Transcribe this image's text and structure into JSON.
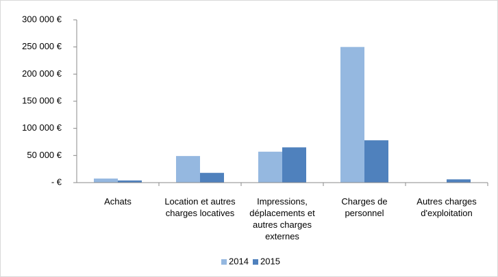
{
  "chart_data": {
    "type": "bar",
    "categories": [
      "Achats",
      "Location et autres charges locatives",
      "Impressions, déplacements et autres charges externes",
      "Charges de personnel",
      "Autres charges d'exploitation"
    ],
    "series": [
      {
        "name": "2014",
        "color": "#95b8e0",
        "values": [
          7500,
          49000,
          57000,
          250000,
          0
        ]
      },
      {
        "name": "2015",
        "color": "#4f81bd",
        "values": [
          4000,
          18000,
          65000,
          78000,
          6000
        ]
      }
    ],
    "ylim": [
      0,
      300000
    ],
    "yticks": [
      {
        "value": 0,
        "label": "-   €"
      },
      {
        "value": 50000,
        "label": "50 000 €"
      },
      {
        "value": 100000,
        "label": "100 000 €"
      },
      {
        "value": 150000,
        "label": "150 000 €"
      },
      {
        "value": 200000,
        "label": "200 000 €"
      },
      {
        "value": 250000,
        "label": "250 000 €"
      },
      {
        "value": 300000,
        "label": "300 000 €"
      }
    ],
    "grid": false,
    "legend": "bottom"
  }
}
